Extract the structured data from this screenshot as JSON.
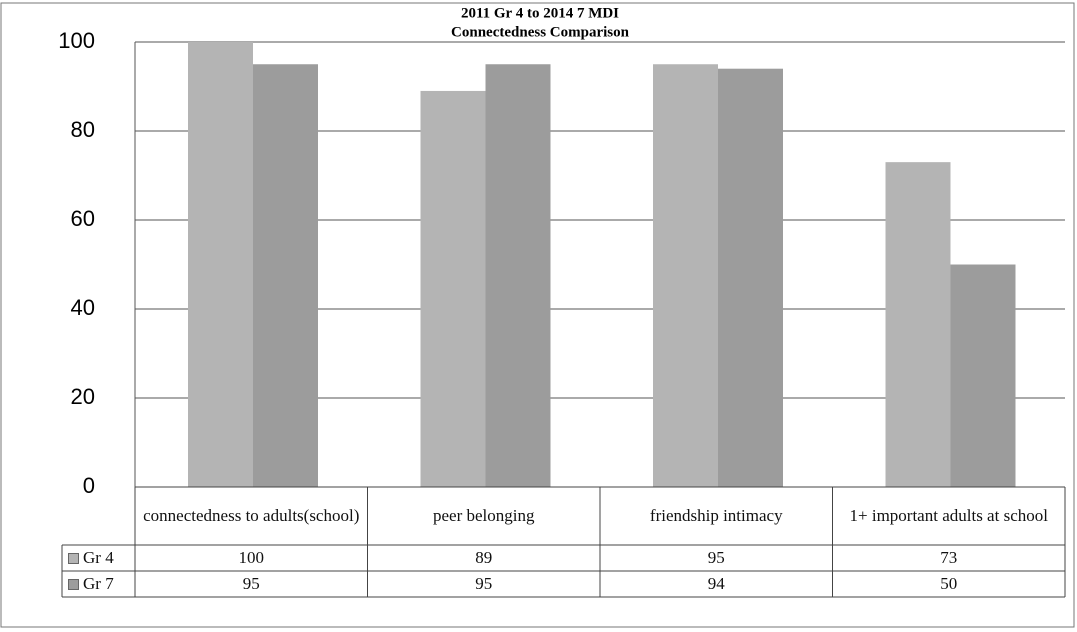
{
  "chart_data": {
    "type": "bar",
    "title": "2011 Gr 4 to 2014  7 MDI",
    "subtitle": "Connectedness Comparison",
    "categories": [
      "connectedness to adults(school)",
      "peer belonging",
      "friendship intimacy",
      "1+ important adults at school"
    ],
    "series": [
      {
        "name": "Gr 4",
        "color": "#b4b4b4",
        "values": [
          100,
          89,
          95,
          73
        ]
      },
      {
        "name": "Gr 7",
        "color": "#9c9c9c",
        "values": [
          95,
          95,
          94,
          50
        ]
      }
    ],
    "ylim": [
      0,
      100
    ],
    "yticks": [
      0,
      20,
      40,
      60,
      80,
      100
    ],
    "grid": true
  }
}
